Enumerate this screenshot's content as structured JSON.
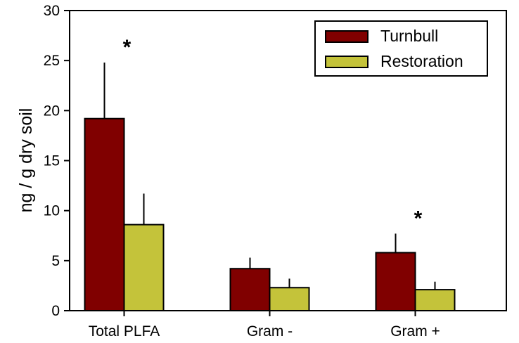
{
  "chart_data": {
    "type": "bar",
    "title": "",
    "xlabel": "",
    "ylabel": "ng / g dry soil",
    "ylim": [
      0,
      30
    ],
    "yticks": [
      0,
      5,
      10,
      15,
      20,
      25,
      30
    ],
    "grid": false,
    "legend_position": "top-right",
    "categories": [
      "Total PLFA",
      "Gram -",
      "Gram +"
    ],
    "series": [
      {
        "name": "Turnbull",
        "color": "#800000",
        "values": [
          19.2,
          4.2,
          5.8
        ],
        "errors": [
          5.6,
          1.1,
          1.9
        ]
      },
      {
        "name": "Restoration",
        "color": "#c4c33a",
        "values": [
          8.6,
          2.3,
          2.1
        ],
        "errors": [
          3.1,
          0.9,
          0.8
        ]
      }
    ],
    "annotations": [
      {
        "category": "Total PLFA",
        "text": "*"
      },
      {
        "category": "Gram +",
        "text": "*"
      }
    ]
  }
}
